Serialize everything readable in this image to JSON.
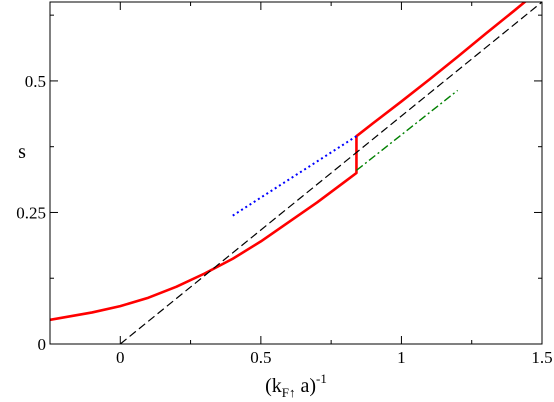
{
  "chart_data": {
    "type": "line",
    "title": "",
    "xlabel": {
      "main": "(k",
      "sub": "F↑",
      "mid": " a)",
      "sup": "-1"
    },
    "ylabel": "s",
    "xlim": [
      -0.25,
      1.5
    ],
    "ylim": [
      0,
      0.65
    ],
    "x_ticks": [
      0,
      0.5,
      1,
      1.5
    ],
    "x_tick_labels": [
      "0",
      "0.5",
      "1",
      "1.5"
    ],
    "y_ticks": [
      0,
      0.25,
      0.5
    ],
    "y_tick_labels": [
      "0",
      "0.25",
      "0.5"
    ],
    "grid": false,
    "series": [
      {
        "style": "solid",
        "color": "#ff0000",
        "x": [
          -0.25,
          -0.1,
          0.0,
          0.1,
          0.2,
          0.3,
          0.4,
          0.5,
          0.6,
          0.7,
          0.8,
          0.84,
          0.84,
          0.9,
          1.0,
          1.1,
          1.2,
          1.3,
          1.4,
          1.5
        ],
        "y": [
          0.046,
          0.06,
          0.072,
          0.088,
          0.109,
          0.134,
          0.162,
          0.195,
          0.232,
          0.269,
          0.309,
          0.325,
          0.395,
          0.42,
          0.461,
          0.503,
          0.546,
          0.59,
          0.633,
          0.677
        ]
      },
      {
        "style": "dashed",
        "color": "#000000",
        "x": [
          0.0,
          1.5
        ],
        "y": [
          0.0,
          0.65
        ]
      },
      {
        "style": "dotted",
        "color": "#0000ff",
        "x": [
          0.4,
          0.84
        ],
        "y": [
          0.244,
          0.395
        ]
      },
      {
        "style": "dashdot",
        "color": "#008000",
        "x": [
          0.84,
          1.2
        ],
        "y": [
          0.33,
          0.482
        ]
      }
    ]
  }
}
